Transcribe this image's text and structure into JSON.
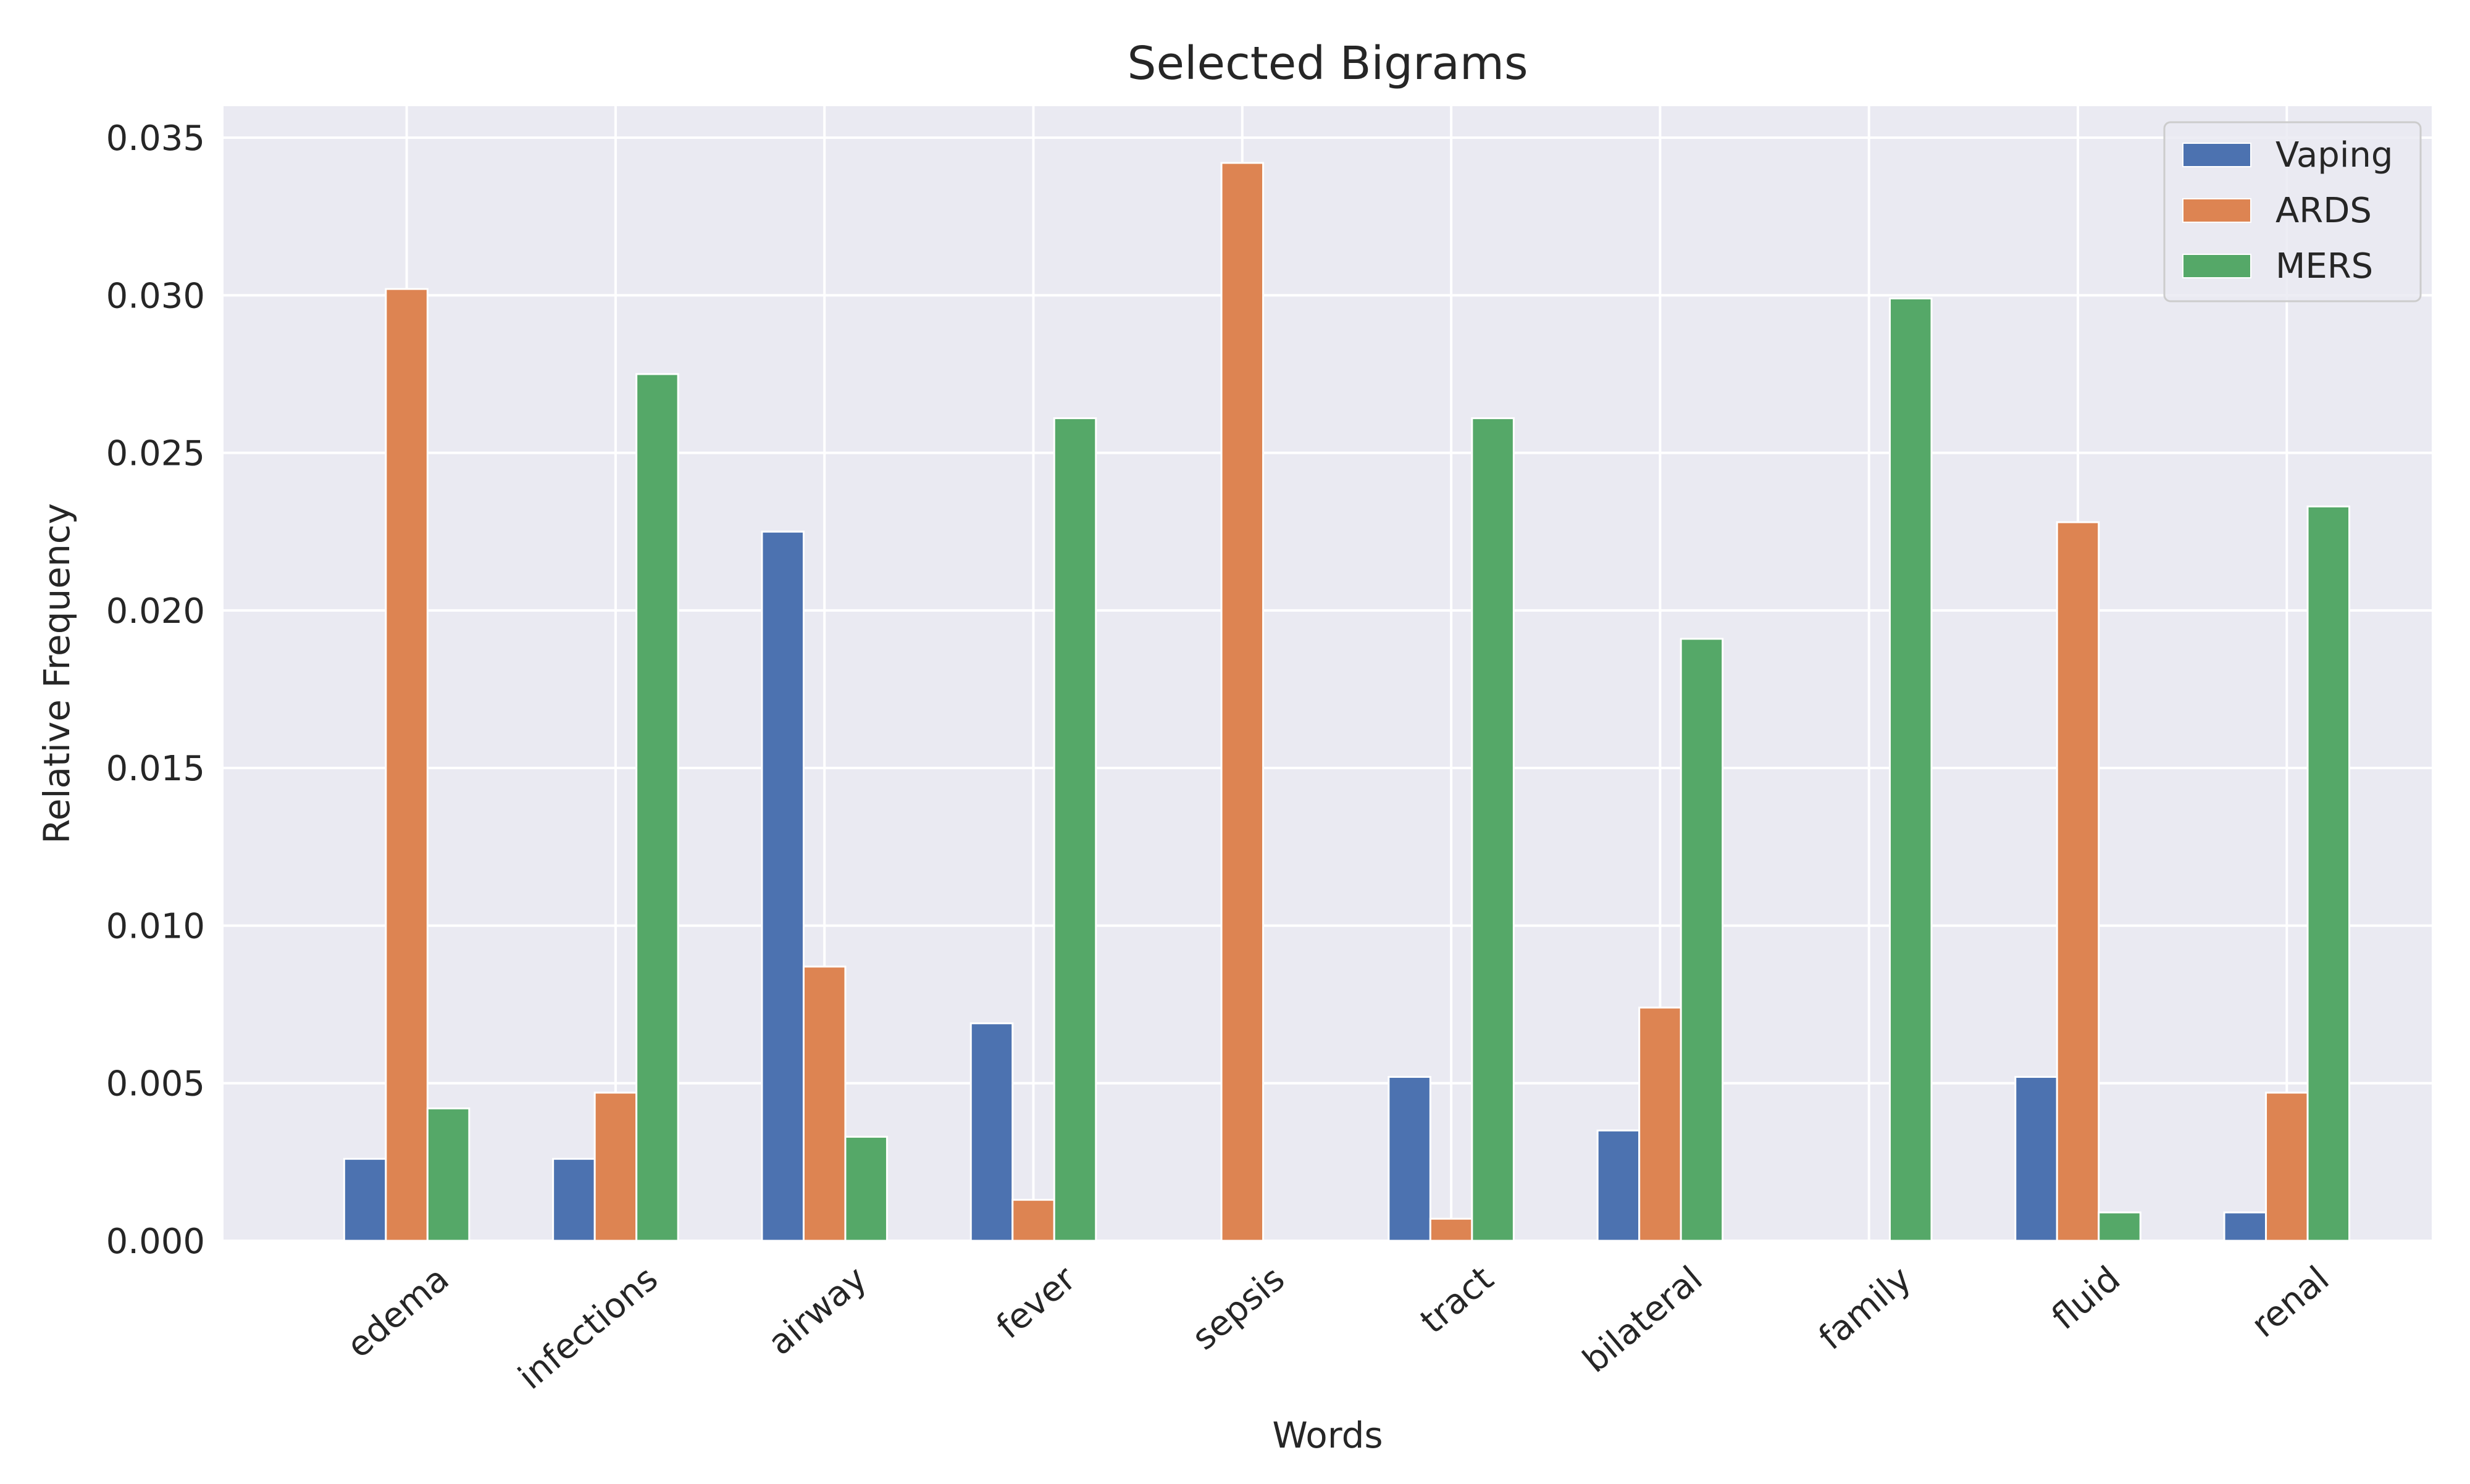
{
  "chart_data": {
    "type": "bar",
    "title": "Selected Bigrams",
    "xlabel": "Words",
    "ylabel": "Relative Frequency",
    "categories": [
      "edema",
      "infections",
      "airway",
      "fever",
      "sepsis",
      "tract",
      "bilateral",
      "family",
      "fluid",
      "renal"
    ],
    "series": [
      {
        "name": "Vaping",
        "color": "#4c72b0",
        "values": [
          0.0026,
          0.0026,
          0.0225,
          0.0069,
          0.0,
          0.0052,
          0.0035,
          0.0,
          0.0052,
          0.0009
        ]
      },
      {
        "name": "ARDS",
        "color": "#dd8452",
        "values": [
          0.0302,
          0.0047,
          0.0087,
          0.0013,
          0.0342,
          0.0007,
          0.0074,
          0.0,
          0.0228,
          0.0047
        ]
      },
      {
        "name": "MERS",
        "color": "#55a868",
        "values": [
          0.0042,
          0.0275,
          0.0033,
          0.0261,
          0.0,
          0.0261,
          0.0191,
          0.0299,
          0.0009,
          0.0233
        ]
      }
    ],
    "ylim": [
      0,
      0.036
    ],
    "yticks": [
      "0.000",
      "0.005",
      "0.010",
      "0.015",
      "0.020",
      "0.025",
      "0.030",
      "0.035"
    ],
    "grid": true,
    "legend_position": "top-right",
    "plot_background": "#eaeaf2"
  }
}
